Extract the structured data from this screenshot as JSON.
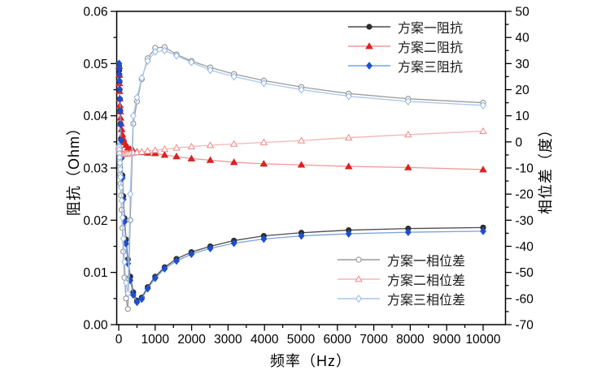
{
  "chart_data": {
    "type": "line",
    "title": "",
    "xlabel": "频率（Hz）",
    "xlim": [
      0,
      10000
    ],
    "x_major_step": 1000,
    "x_minor_step": 500,
    "grid": false,
    "legend_position": {
      "impedance": "top-right-inside",
      "phase": "bottom-right-inside"
    },
    "x": [
      10,
      13,
      16,
      20,
      25,
      32,
      40,
      50,
      63,
      79,
      100,
      126,
      158,
      200,
      251,
      316,
      398,
      501,
      631,
      794,
      1000,
      1259,
      1585,
      1995,
      2512,
      3162,
      3981,
      5012,
      6310,
      7943,
      10000
    ],
    "axes": {
      "left": {
        "title": "阻抗（Ohm）",
        "min": 0,
        "max": 0.06,
        "major_step": 0.01,
        "minor_step": 0.005,
        "decimals": 2
      },
      "right": {
        "title": "相位差（度）",
        "min": -70,
        "max": 50,
        "major_step": 10,
        "minor_step": 5,
        "decimals": 0
      }
    },
    "series": [
      {
        "name": "方案一阻抗",
        "axis": "left",
        "marker": "circle",
        "line_color": "#4a4a4a",
        "marker_fill": "#2e2e2e",
        "marker_stroke": "#2e2e2e",
        "values": [
          0.0495,
          0.0487,
          0.0477,
          0.0465,
          0.045,
          0.0432,
          0.041,
          0.0385,
          0.0356,
          0.0323,
          0.0286,
          0.0246,
          0.0204,
          0.0163,
          0.0125,
          0.0092,
          0.0062,
          0.0046,
          0.0052,
          0.0072,
          0.0092,
          0.011,
          0.0126,
          0.0139,
          0.015,
          0.0161,
          0.017,
          0.0176,
          0.0181,
          0.0184,
          0.0186
        ]
      },
      {
        "name": "方案二阻抗",
        "axis": "left",
        "marker": "triangle",
        "line_color": "#f19999",
        "marker_fill": "#e02222",
        "marker_stroke": "#d81e1e",
        "values": [
          0.0495,
          0.0478,
          0.0462,
          0.0447,
          0.0433,
          0.042,
          0.0408,
          0.0396,
          0.0385,
          0.0374,
          0.0364,
          0.0356,
          0.0349,
          0.0344,
          0.0339,
          0.0336,
          0.0333,
          0.0331,
          0.033,
          0.0329,
          0.0328,
          0.0325,
          0.0322,
          0.0318,
          0.0315,
          0.0311,
          0.0308,
          0.0306,
          0.0303,
          0.0301,
          0.0297
        ]
      },
      {
        "name": "方案三阻抗",
        "axis": "left",
        "marker": "diamond",
        "line_color": "#79a1dd",
        "marker_fill": "#1c4fd0",
        "marker_stroke": "#1c4fd0",
        "values": [
          0.05,
          0.0491,
          0.048,
          0.0467,
          0.0451,
          0.0432,
          0.0409,
          0.0383,
          0.0353,
          0.0319,
          0.0281,
          0.024,
          0.0197,
          0.0155,
          0.0117,
          0.0085,
          0.0057,
          0.0043,
          0.0049,
          0.0069,
          0.0089,
          0.0107,
          0.0122,
          0.0135,
          0.0146,
          0.0156,
          0.0164,
          0.017,
          0.0174,
          0.0177,
          0.0179
        ]
      },
      {
        "name": "方案一相位差",
        "axis": "right",
        "marker": "circle",
        "line_color": "#9b9b9b",
        "marker_fill": "#ffffff",
        "marker_stroke": "#8a8a8a",
        "values": [
          -2,
          -2.5,
          -3.5,
          -5,
          -7,
          -9.5,
          -12.5,
          -16,
          -20.5,
          -26,
          -33,
          -42,
          -52,
          -60,
          -64,
          -30,
          7,
          15.5,
          24,
          32,
          36,
          36.3,
          33.5,
          31,
          28.5,
          26,
          23.5,
          21,
          18.5,
          16.5,
          15
        ]
      },
      {
        "name": "方案二相位差",
        "axis": "right",
        "marker": "triangle",
        "line_color": "#f5b5b5",
        "marker_fill": "#ffffff",
        "marker_stroke": "#ee8888",
        "values": [
          -1.5,
          -1.8,
          -2.1,
          -2.5,
          -2.9,
          -3.3,
          -3.7,
          -4.0,
          -4.3,
          -4.5,
          -4.6,
          -4.7,
          -4.7,
          -4.6,
          -4.5,
          -4.4,
          -4.2,
          -4.0,
          -3.8,
          -3.5,
          -3.2,
          -2.8,
          -2.3,
          -1.8,
          -1.3,
          -0.8,
          -0.2,
          0.5,
          1.6,
          2.8,
          4.1
        ]
      },
      {
        "name": "方案三相位差",
        "axis": "right",
        "marker": "diamond",
        "line_color": "#a9c6ec",
        "marker_fill": "#ffffff",
        "marker_stroke": "#94b6e8",
        "values": [
          -1.5,
          -2,
          -3,
          -4.5,
          -6,
          -8,
          -10.5,
          -13.5,
          -17.5,
          -22.5,
          -29,
          -37,
          -46,
          -54,
          -58,
          -20,
          10,
          17,
          24.5,
          31,
          34.5,
          35,
          33,
          30.5,
          27.5,
          25,
          22.5,
          20,
          17.5,
          15.5,
          14
        ]
      }
    ]
  },
  "colors": {
    "axis": "#000000",
    "background": "#ffffff",
    "text": "#1a1a1a"
  }
}
